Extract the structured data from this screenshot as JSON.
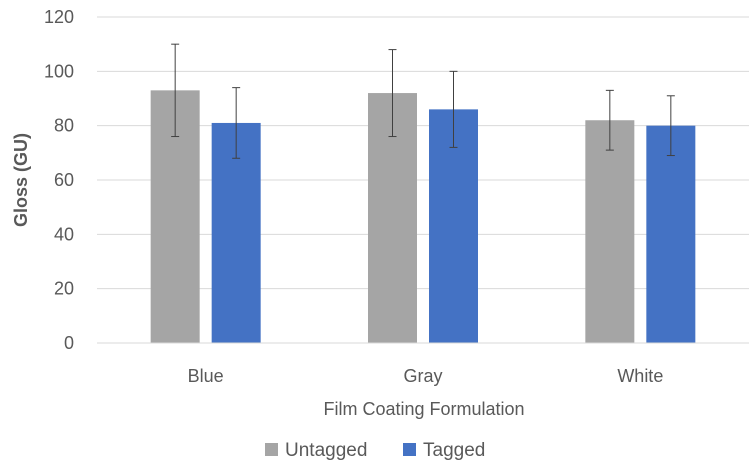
{
  "chart_data": {
    "type": "bar",
    "categories": [
      "Blue",
      "Gray",
      "White"
    ],
    "series": [
      {
        "name": "Untagged",
        "color": "#a5a5a5",
        "values": [
          93,
          92,
          82
        ],
        "error_low": [
          76,
          76,
          71
        ],
        "error_high": [
          110,
          108,
          93
        ]
      },
      {
        "name": "Tagged",
        "color": "#4472c4",
        "values": [
          81,
          86,
          80
        ],
        "error_low": [
          68,
          72,
          69
        ],
        "error_high": [
          94,
          100,
          91
        ]
      }
    ],
    "title": "",
    "xlabel": "Film Coating Formulation",
    "ylabel": "Gloss (GU)",
    "ylim": [
      0,
      120
    ],
    "yticks": [
      0,
      20,
      40,
      60,
      80,
      100,
      120
    ],
    "grid": true,
    "legend_position": "bottom"
  }
}
